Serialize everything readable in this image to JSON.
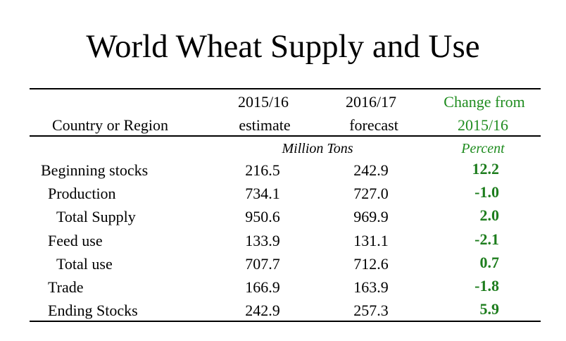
{
  "title": "World Wheat Supply and Use",
  "table": {
    "headers": {
      "region": "Country or Region",
      "col1_line1": "2015/16",
      "col1_line2": "estimate",
      "col2_line1": "2016/17",
      "col2_line2": "forecast",
      "col3_line1": "Change from",
      "col3_line2": "2015/16"
    },
    "units": {
      "tons": "Million Tons",
      "percent": "Percent"
    },
    "rows": [
      {
        "label": "Beginning stocks",
        "v2015": "216.5",
        "v2016": "242.9",
        "change": "12.2"
      },
      {
        "label": "Production",
        "v2015": "734.1",
        "v2016": "727.0",
        "change": "-1.0"
      },
      {
        "label": "Total Supply",
        "v2015": "950.6",
        "v2016": "969.9",
        "change": "2.0"
      },
      {
        "label": "Feed use",
        "v2015": "133.9",
        "v2016": "131.1",
        "change": "-2.1"
      },
      {
        "label": "Total use",
        "v2015": "707.7",
        "v2016": "712.6",
        "change": "0.7"
      },
      {
        "label": "Trade",
        "v2015": "166.9",
        "v2016": "163.9",
        "change": "-1.8"
      },
      {
        "label": "Ending Stocks",
        "v2015": "242.9",
        "v2016": "257.3",
        "change": "5.9"
      }
    ]
  },
  "colors": {
    "accent_green": "#1f8c1f"
  }
}
